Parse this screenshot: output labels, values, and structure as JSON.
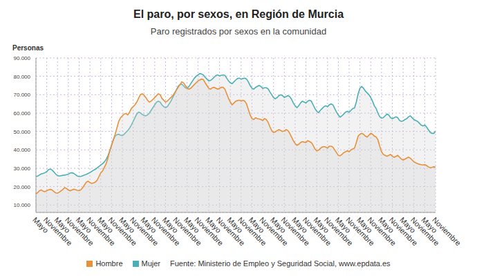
{
  "chart_data": {
    "type": "area",
    "title": "El paro, por sexos, en Región de Murcia",
    "subtitle": "Paro registrados por sexos en la comunidad",
    "y_label": "Personas",
    "source": "Fuente: Ministerio de Empleo y Seguridad Social, www.epdata.es",
    "legend": "bottom",
    "grid": true,
    "categories": [
      "Mayo",
      null,
      null,
      null,
      null,
      null,
      "Noviembre",
      null,
      null,
      null,
      null,
      null,
      "Mayo",
      null,
      null,
      null,
      null,
      null,
      "Noviembre",
      null,
      null,
      null,
      null,
      null,
      "Mayo",
      null,
      null,
      null,
      null,
      null,
      "Noviembre",
      null,
      null,
      null,
      null,
      null,
      "Mayo",
      null,
      null,
      null,
      null,
      null,
      "Noviembre",
      null,
      null,
      null,
      null,
      null,
      "Mayo",
      null,
      null,
      null,
      null,
      null,
      "Noviembre",
      null,
      null,
      null,
      null,
      null,
      "Mayo",
      null,
      null,
      null,
      null,
      null,
      "Noviembre",
      null,
      null,
      null,
      null,
      null,
      "Mayo",
      null,
      null,
      null,
      null,
      null,
      "Noviembre",
      null,
      null,
      null,
      null,
      null,
      "Mayo",
      null,
      null,
      null,
      null,
      null,
      "Noviembre",
      null,
      null,
      null,
      null,
      null,
      "Mayo",
      null,
      null,
      null,
      null,
      null,
      "Noviembre",
      null,
      null,
      null,
      null,
      null,
      "Mayo",
      null,
      null,
      null,
      null,
      null,
      "Noviembre",
      null,
      null,
      null,
      null,
      null,
      "Mayo",
      null,
      null,
      null,
      null,
      null,
      "Noviembre",
      null,
      null,
      null,
      null,
      null,
      "Mayo",
      null,
      null,
      null,
      null,
      null,
      "Noviembre",
      null,
      null,
      null,
      null,
      null,
      "Mayo",
      null,
      null,
      null,
      null,
      null,
      "Noviembre",
      null,
      null,
      null,
      null,
      null,
      "Mayo",
      null,
      null,
      null,
      null,
      null,
      "Noviembre",
      null,
      null,
      null,
      null,
      null,
      "Mayo",
      null,
      null,
      null,
      null,
      null,
      "Noviembre",
      null,
      null,
      null,
      null,
      null,
      "Mayo",
      null,
      null,
      null,
      null,
      null,
      "Noviembre",
      null,
      null,
      null,
      null,
      null,
      "Mayo",
      null,
      null,
      null,
      null,
      null,
      "Noviembre",
      null,
      null,
      null,
      null,
      null,
      "Mayo",
      null,
      null,
      null,
      null,
      null,
      "Noviembre",
      null,
      null,
      null,
      null,
      null,
      "Mayo",
      null,
      null,
      null,
      null,
      null,
      "Noviembre"
    ],
    "series": [
      {
        "name": "Hombre",
        "color": "#e8913a",
        "values": [
          16000,
          16800,
          17800,
          18200,
          17500,
          17300,
          17800,
          18300,
          18500,
          18200,
          17300,
          16600,
          16500,
          17000,
          17800,
          18500,
          19500,
          19000,
          18200,
          17800,
          18200,
          18600,
          18400,
          18000,
          17800,
          18300,
          19500,
          21000,
          22500,
          23000,
          22200,
          21800,
          22000,
          22500,
          23500,
          25500,
          27500,
          28500,
          30500,
          32500,
          35500,
          39500,
          42500,
          45500,
          48500,
          52000,
          55500,
          57500,
          58500,
          59500,
          59800,
          59000,
          60500,
          62500,
          63500,
          64500,
          66000,
          68000,
          70000,
          70500,
          69800,
          68500,
          67000,
          66000,
          66500,
          67500,
          68500,
          69500,
          70500,
          70000,
          68000,
          67000,
          66000,
          66500,
          67500,
          68500,
          69500,
          71000,
          72500,
          74000,
          75500,
          77000,
          76500,
          75000,
          73500,
          73000,
          73500,
          74500,
          75500,
          76500,
          77500,
          78000,
          78500,
          78200,
          76500,
          75000,
          73500,
          73000,
          73800,
          74000,
          73500,
          73000,
          73500,
          74000,
          74000,
          73000,
          70500,
          68000,
          66000,
          64500,
          65500,
          66500,
          66800,
          67000,
          66500,
          67000,
          66500,
          65000,
          62000,
          59000,
          57000,
          56500,
          57500,
          57000,
          56800,
          56500,
          56000,
          57000,
          56500,
          55000,
          52500,
          50500,
          49500,
          49800,
          50500,
          51000,
          50500,
          50000,
          50300,
          51000,
          50500,
          49000,
          47000,
          45000,
          43500,
          42500,
          43000,
          44000,
          44500,
          44200,
          44000,
          45000,
          44500,
          44000,
          42500,
          40500,
          39500,
          39800,
          40800,
          41500,
          41800,
          41500,
          41000,
          42000,
          42000,
          41500,
          40000,
          38500,
          37000,
          36800,
          37500,
          38500,
          39000,
          39500,
          39000,
          40000,
          40500,
          41000,
          44000,
          47500,
          48500,
          49000,
          48500,
          47500,
          47000,
          48000,
          49000,
          48500,
          47500,
          47000,
          45500,
          42000,
          39000,
          37500,
          37000,
          36500,
          37000,
          37500,
          36500,
          36000,
          36500,
          37000,
          36000,
          35000,
          34500,
          35000,
          35500,
          36000,
          35500,
          34500,
          33500,
          33000,
          32500,
          32200,
          32000,
          31800,
          32000,
          31500,
          30800,
          30300,
          30500,
          30800,
          30600
        ]
      },
      {
        "name": "Mujer",
        "color": "#4bafb6",
        "values": [
          25500,
          25800,
          26400,
          27000,
          27200,
          27600,
          28200,
          29300,
          29600,
          29000,
          28000,
          26800,
          26100,
          25800,
          26000,
          26200,
          26300,
          26500,
          26800,
          27400,
          27600,
          27200,
          26500,
          25800,
          25500,
          25600,
          26000,
          26300,
          26700,
          27200,
          27700,
          28300,
          29000,
          29400,
          30200,
          31000,
          31800,
          32500,
          33500,
          34800,
          36800,
          39500,
          42500,
          45500,
          47500,
          48300,
          48500,
          48000,
          47800,
          48500,
          49500,
          50500,
          51800,
          53500,
          55500,
          57500,
          59500,
          60500,
          60200,
          59300,
          58800,
          58500,
          59000,
          60000,
          61500,
          63000,
          64500,
          66000,
          66500,
          66000,
          64500,
          63500,
          63000,
          63500,
          65000,
          66500,
          68500,
          70500,
          72500,
          74500,
          75500,
          75800,
          74800,
          73800,
          73500,
          74500,
          76000,
          77500,
          79000,
          80000,
          80800,
          81500,
          81300,
          80800,
          79500,
          78500,
          77500,
          77800,
          78500,
          79500,
          80500,
          80800,
          80200,
          80500,
          80800,
          80500,
          79000,
          77500,
          76500,
          76000,
          77000,
          78000,
          78800,
          79000,
          78500,
          78800,
          79000,
          78500,
          77000,
          75000,
          73500,
          73000,
          74000,
          74500,
          75000,
          74500,
          73500,
          73800,
          73800,
          73200,
          71500,
          70000,
          68500,
          67800,
          68500,
          69500,
          70000,
          69500,
          68500,
          69000,
          69500,
          69000,
          67500,
          65500,
          64000,
          63000,
          64000,
          65500,
          66500,
          66000,
          65500,
          66500,
          67000,
          66500,
          64500,
          62500,
          61000,
          60200,
          61500,
          62500,
          63500,
          64000,
          63500,
          64500,
          65000,
          64500,
          62500,
          60500,
          59000,
          57800,
          58500,
          59500,
          60500,
          61000,
          60500,
          61500,
          62500,
          62800,
          66000,
          70500,
          73500,
          74500,
          73500,
          72000,
          71000,
          70000,
          68500,
          66500,
          64000,
          62500,
          60000,
          58000,
          57200,
          57500,
          58500,
          59500,
          59000,
          57500,
          57000,
          57500,
          58000,
          57500,
          56000,
          55500,
          55800,
          56500,
          57000,
          58000,
          58500,
          57500,
          56500,
          56000,
          55500,
          54500,
          53500,
          53000,
          53500,
          52500,
          51000,
          49500,
          49000,
          49000,
          50000
        ]
      }
    ],
    "ylim": [
      6000,
      90000
    ],
    "yticks": [
      {
        "value": 10000,
        "label": "10.000"
      },
      {
        "value": 20000,
        "label": "20.000"
      },
      {
        "value": 30000,
        "label": "30.000"
      },
      {
        "value": 40000,
        "label": "40.000"
      },
      {
        "value": 50000,
        "label": "50.000"
      },
      {
        "value": 60000,
        "label": "60.000"
      },
      {
        "value": 70000,
        "label": "70.000"
      },
      {
        "value": 80000,
        "label": "80.000"
      },
      {
        "value": 90000,
        "label": "90.000"
      }
    ]
  }
}
